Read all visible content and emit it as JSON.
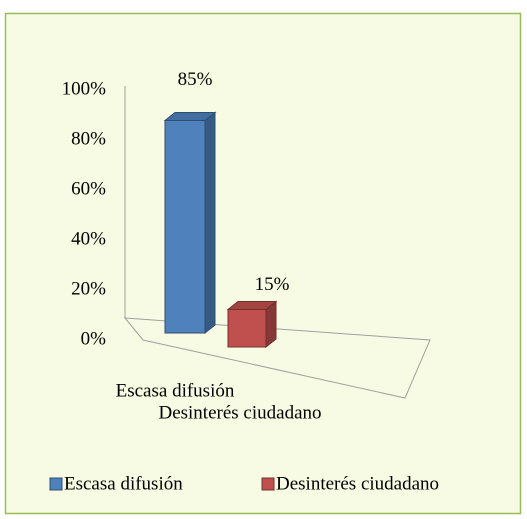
{
  "chart_data": {
    "type": "bar3d",
    "categories": [
      "Escasa difusión",
      "Desinterés ciudadano"
    ],
    "values": [
      85,
      15
    ],
    "value_labels": [
      "85%",
      "15%"
    ],
    "colors": [
      "#4f81bd",
      "#c0504d"
    ],
    "ylim": [
      0,
      100
    ],
    "yticks": [
      {
        "value": 0,
        "label": "0%"
      },
      {
        "value": 20,
        "label": "20%"
      },
      {
        "value": 40,
        "label": "40%"
      },
      {
        "value": 60,
        "label": "60%"
      },
      {
        "value": 80,
        "label": "80%"
      },
      {
        "value": 100,
        "label": "100%"
      }
    ],
    "legend": "bottom"
  }
}
